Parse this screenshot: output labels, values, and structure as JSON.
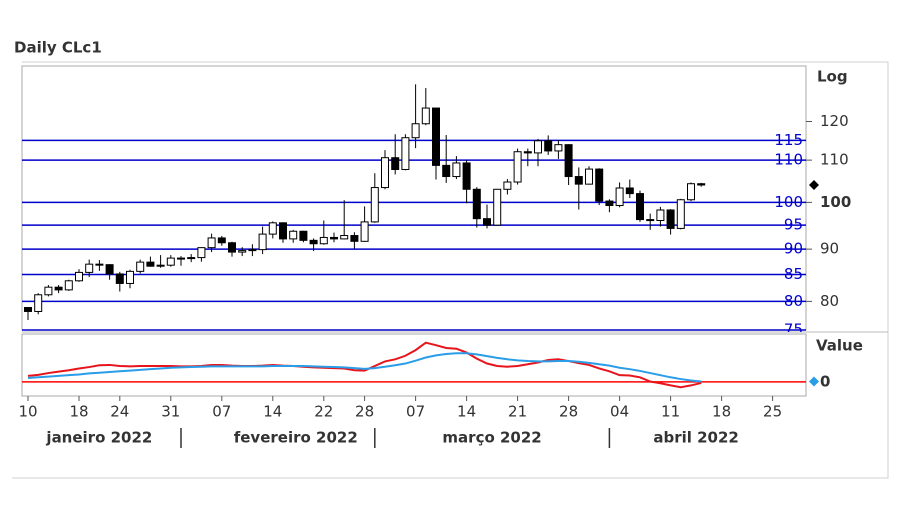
{
  "chart_data": [
    {
      "type": "candlestick",
      "title": "Daily CLc1",
      "y_axis_label": "Log",
      "log_scale": true,
      "x": [
        "2022-01-10",
        "2022-01-11",
        "2022-01-12",
        "2022-01-13",
        "2022-01-14",
        "2022-01-18",
        "2022-01-19",
        "2022-01-20",
        "2022-01-21",
        "2022-01-24",
        "2022-01-25",
        "2022-01-26",
        "2022-01-27",
        "2022-01-28",
        "2022-01-31",
        "2022-02-01",
        "2022-02-02",
        "2022-02-03",
        "2022-02-04",
        "2022-02-07",
        "2022-02-08",
        "2022-02-09",
        "2022-02-10",
        "2022-02-11",
        "2022-02-14",
        "2022-02-15",
        "2022-02-16",
        "2022-02-17",
        "2022-02-18",
        "2022-02-22",
        "2022-02-23",
        "2022-02-24",
        "2022-02-25",
        "2022-02-28",
        "2022-03-01",
        "2022-03-02",
        "2022-03-03",
        "2022-03-04",
        "2022-03-07",
        "2022-03-08",
        "2022-03-09",
        "2022-03-10",
        "2022-03-11",
        "2022-03-14",
        "2022-03-15",
        "2022-03-16",
        "2022-03-17",
        "2022-03-18",
        "2022-03-21",
        "2022-03-22",
        "2022-03-23",
        "2022-03-24",
        "2022-03-25",
        "2022-03-28",
        "2022-03-29",
        "2022-03-30",
        "2022-03-31",
        "2022-04-01",
        "2022-04-04",
        "2022-04-05",
        "2022-04-06",
        "2022-04-07",
        "2022-04-08",
        "2022-04-11",
        "2022-04-12",
        "2022-04-13",
        "2022-04-14"
      ],
      "open": [
        78.9,
        78.2,
        81.2,
        82.6,
        82.1,
        83.8,
        85.4,
        87.0,
        86.9,
        85.1,
        83.3,
        85.6,
        87.4,
        86.6,
        86.8,
        88.2,
        88.2,
        88.3,
        90.3,
        92.3,
        91.3,
        89.4,
        89.7,
        89.9,
        93.1,
        95.5,
        92.1,
        93.7,
        91.8,
        91.1,
        92.4,
        92.1,
        92.8,
        91.6,
        95.7,
        103.4,
        110.6,
        107.7,
        115.7,
        119.4,
        123.7,
        108.7,
        106.0,
        109.3,
        103.0,
        96.4,
        95.0,
        103.0,
        104.7,
        112.1,
        111.8,
        114.9,
        112.3,
        113.9,
        106.0,
        104.2,
        107.8,
        100.3,
        99.3,
        103.3,
        102.0,
        96.2,
        96.0,
        98.3,
        94.3,
        100.6,
        104.3
      ],
      "high": [
        79.0,
        81.5,
        83.0,
        83.0,
        84.0,
        86.0,
        87.9,
        87.8,
        87.0,
        85.5,
        85.9,
        87.9,
        88.5,
        88.8,
        88.8,
        88.6,
        89.0,
        90.4,
        93.2,
        92.7,
        91.5,
        90.4,
        91.0,
        94.7,
        95.8,
        95.6,
        94.0,
        93.8,
        92.2,
        96.0,
        93.4,
        100.5,
        93.5,
        99.1,
        106.8,
        112.5,
        116.6,
        116.6,
        130.5,
        129.4,
        123.8,
        116.4,
        111.0,
        110.0,
        103.5,
        99.5,
        103.1,
        105.4,
        112.9,
        112.9,
        115.4,
        116.3,
        115.1,
        114.0,
        108.2,
        108.5,
        108.0,
        100.7,
        104.6,
        105.3,
        102.7,
        97.5,
        99.0,
        98.5,
        100.8,
        104.6,
        104.5
      ],
      "low": [
        76.7,
        77.7,
        80.9,
        81.5,
        81.9,
        83.6,
        84.5,
        85.7,
        84.0,
        81.8,
        82.4,
        85.2,
        86.5,
        86.3,
        86.5,
        86.7,
        87.4,
        87.5,
        89.4,
        90.7,
        88.5,
        88.6,
        88.6,
        89.0,
        92.2,
        91.3,
        91.3,
        91.4,
        89.6,
        90.9,
        91.4,
        92.0,
        90.1,
        91.5,
        95.5,
        103.0,
        106.5,
        107.5,
        113.0,
        119.0,
        105.3,
        104.5,
        105.4,
        99.8,
        94.5,
        94.3,
        94.9,
        101.8,
        104.1,
        108.5,
        108.5,
        111.3,
        110.3,
        104.0,
        98.4,
        104.1,
        99.4,
        97.8,
        98.9,
        101.0,
        95.7,
        94.0,
        94.7,
        93.0,
        94.1,
        100.3,
        103.6
      ],
      "close": [
        78.2,
        81.2,
        82.6,
        82.1,
        83.8,
        85.4,
        87.0,
        86.9,
        85.1,
        83.3,
        85.6,
        87.4,
        86.6,
        86.8,
        88.2,
        88.2,
        88.3,
        90.3,
        92.3,
        91.3,
        89.4,
        89.7,
        89.9,
        93.1,
        95.5,
        92.1,
        93.7,
        91.8,
        91.1,
        92.4,
        92.1,
        92.8,
        91.6,
        95.7,
        103.4,
        110.6,
        107.7,
        115.7,
        119.4,
        123.7,
        108.7,
        106.0,
        109.3,
        103.0,
        96.4,
        95.0,
        103.0,
        104.7,
        112.1,
        111.8,
        114.9,
        112.3,
        113.9,
        106.0,
        104.2,
        107.8,
        100.3,
        99.3,
        103.3,
        102.0,
        96.2,
        96.0,
        98.3,
        94.3,
        100.6,
        104.3,
        104.0
      ],
      "up_color": "#ffffff",
      "down_color": "#000000",
      "ylim": [
        75,
        136
      ],
      "yticks": [
        80,
        90,
        100,
        110,
        120
      ],
      "bold_ytick": 100,
      "levels": {
        "color": "#0000cc",
        "values": [
          75,
          80,
          85,
          90,
          95,
          100,
          110,
          115
        ]
      },
      "xticks": [
        {
          "value": "2022-01-10",
          "label": "10"
        },
        {
          "value": "2022-01-18",
          "label": "18"
        },
        {
          "value": "2022-01-24",
          "label": "24"
        },
        {
          "value": "2022-01-31",
          "label": "31"
        },
        {
          "value": "2022-02-07",
          "label": "07"
        },
        {
          "value": "2022-02-14",
          "label": "14"
        },
        {
          "value": "2022-02-22",
          "label": "22"
        },
        {
          "value": "2022-02-28",
          "label": "28"
        },
        {
          "value": "2022-03-07",
          "label": "07"
        },
        {
          "value": "2022-03-14",
          "label": "14"
        },
        {
          "value": "2022-03-21",
          "label": "21"
        },
        {
          "value": "2022-03-28",
          "label": "28"
        },
        {
          "value": "2022-04-04",
          "label": "04"
        },
        {
          "value": "2022-04-11",
          "label": "11"
        },
        {
          "value": "2022-04-18",
          "label": "18"
        },
        {
          "value": "2022-04-25",
          "label": "25"
        }
      ],
      "months": [
        "janeiro 2022",
        "fevereiro 2022",
        "março 2022",
        "abril 2022"
      ]
    },
    {
      "type": "line",
      "y_axis_label": "Value",
      "zero_line_color": "#ff0000",
      "marker_series": 1,
      "series": [
        {
          "color": "#e8141c",
          "values": [
            1.7,
            2.0,
            2.5,
            2.9,
            3.3,
            3.8,
            4.2,
            4.7,
            4.8,
            4.5,
            4.4,
            4.5,
            4.5,
            4.5,
            4.5,
            4.4,
            4.4,
            4.5,
            4.8,
            4.8,
            4.6,
            4.5,
            4.5,
            4.6,
            4.8,
            4.6,
            4.5,
            4.3,
            4.1,
            4.0,
            3.9,
            3.8,
            3.3,
            3.2,
            4.5,
            5.8,
            6.4,
            7.4,
            9.0,
            11.1,
            10.4,
            9.6,
            9.4,
            8.3,
            6.6,
            5.2,
            4.5,
            4.3,
            4.5,
            5.0,
            5.5,
            6.2,
            6.4,
            5.9,
            5.3,
            4.8,
            3.8,
            3.0,
            1.9,
            1.8,
            1.3,
            0.1,
            -0.4,
            -1.0,
            -1.5,
            -1.0,
            -0.3
          ]
        },
        {
          "color": "#2a9de8",
          "values": [
            1.1,
            1.3,
            1.5,
            1.7,
            1.9,
            2.1,
            2.4,
            2.6,
            2.8,
            3.0,
            3.2,
            3.4,
            3.6,
            3.8,
            4.0,
            4.1,
            4.2,
            4.3,
            4.4,
            4.4,
            4.4,
            4.4,
            4.4,
            4.4,
            4.5,
            4.5,
            4.5,
            4.5,
            4.4,
            4.3,
            4.2,
            4.1,
            3.9,
            3.7,
            3.9,
            4.3,
            4.7,
            5.2,
            6.0,
            6.9,
            7.5,
            7.9,
            8.1,
            8.1,
            7.8,
            7.3,
            6.8,
            6.4,
            6.1,
            5.9,
            5.8,
            5.8,
            5.9,
            5.9,
            5.7,
            5.4,
            5.0,
            4.6,
            4.0,
            3.6,
            3.1,
            2.5,
            1.9,
            1.3,
            0.8,
            0.4,
            0.1
          ]
        }
      ],
      "ylim": [
        -4,
        13
      ],
      "yticks": [
        0
      ]
    }
  ]
}
